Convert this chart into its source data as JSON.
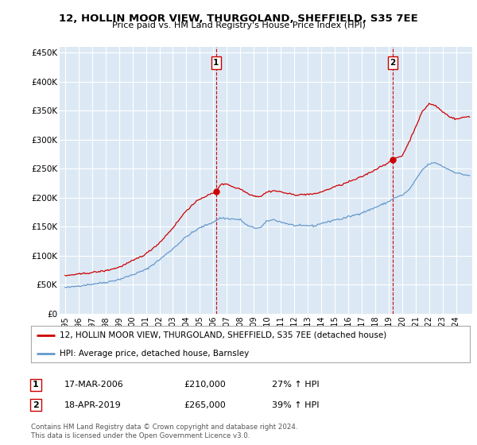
{
  "title": "12, HOLLIN MOOR VIEW, THURGOLAND, SHEFFIELD, S35 7EE",
  "subtitle": "Price paid vs. HM Land Registry's House Price Index (HPI)",
  "ylim": [
    0,
    460000
  ],
  "yticks": [
    0,
    50000,
    100000,
    150000,
    200000,
    250000,
    300000,
    350000,
    400000,
    450000
  ],
  "ytick_labels": [
    "£0",
    "£50K",
    "£100K",
    "£150K",
    "£200K",
    "£250K",
    "£300K",
    "£350K",
    "£400K",
    "£450K"
  ],
  "background_color": "#ffffff",
  "plot_bg_color": "#dce9f5",
  "grid_color": "#ffffff",
  "red_color": "#cc0000",
  "blue_color": "#6699cc",
  "sale1_x": 2006.21,
  "sale1_price": 210000,
  "sale2_x": 2019.29,
  "sale2_price": 265000,
  "legend_line1": "12, HOLLIN MOOR VIEW, THURGOLAND, SHEFFIELD, S35 7EE (detached house)",
  "legend_line2": "HPI: Average price, detached house, Barnsley",
  "annot1_date": "17-MAR-2006",
  "annot1_price": "£210,000",
  "annot1_hpi": "27% ↑ HPI",
  "annot2_date": "18-APR-2019",
  "annot2_price": "£265,000",
  "annot2_hpi": "39% ↑ HPI",
  "footer": "Contains HM Land Registry data © Crown copyright and database right 2024.\nThis data is licensed under the Open Government Licence v3.0.",
  "xtick_years": [
    1995,
    1996,
    1997,
    1998,
    1999,
    2000,
    2001,
    2002,
    2003,
    2004,
    2005,
    2006,
    2007,
    2008,
    2009,
    2010,
    2011,
    2012,
    2013,
    2014,
    2015,
    2016,
    2017,
    2018,
    2019,
    2020,
    2021,
    2022,
    2023,
    2024
  ]
}
